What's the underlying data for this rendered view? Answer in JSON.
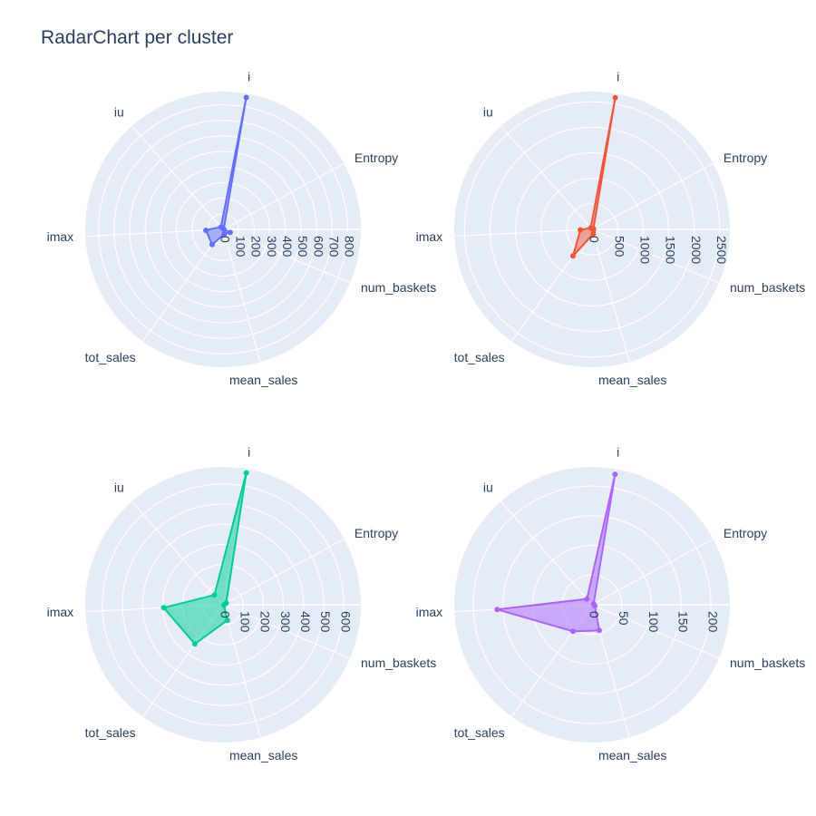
{
  "title": "RadarChart per cluster",
  "chart_data": [
    {
      "type": "radar",
      "theta": [
        "i",
        "Entropy",
        "num_baskets",
        "mean_sales",
        "tot_sales",
        "imax",
        "iu"
      ],
      "radial_range": [
        0,
        885
      ],
      "radial_ticks": [
        0,
        100,
        200,
        300,
        400,
        500,
        600,
        700,
        800
      ],
      "values": [
        860,
        5,
        50,
        30,
        120,
        110,
        20
      ],
      "color": "#636efa"
    },
    {
      "type": "radar",
      "theta": [
        "i",
        "Entropy",
        "num_baskets",
        "mean_sales",
        "tot_sales",
        "imax",
        "iu"
      ],
      "radial_range": [
        0,
        2700
      ],
      "radial_ticks": [
        0,
        500,
        1000,
        1500,
        2000,
        2500
      ],
      "values": [
        2620,
        30,
        30,
        90,
        640,
        230,
        40
      ],
      "color": "#ef553b"
    },
    {
      "type": "radar",
      "theta": [
        "i",
        "Entropy",
        "num_baskets",
        "mean_sales",
        "tot_sales",
        "imax",
        "iu"
      ],
      "radial_range": [
        0,
        685
      ],
      "radial_ticks": [
        0,
        100,
        200,
        300,
        400,
        500,
        600
      ],
      "values": [
        665,
        18,
        5,
        80,
        240,
        295,
        65
      ],
      "color": "#00cc96"
    },
    {
      "type": "radar",
      "theta": [
        "i",
        "Entropy",
        "num_baskets",
        "mean_sales",
        "tot_sales",
        "imax",
        "iu"
      ],
      "radial_range": [
        0,
        232
      ],
      "radial_ticks": [
        0,
        50,
        100,
        150,
        200
      ],
      "values": [
        223,
        3,
        5,
        45,
        55,
        160,
        13
      ],
      "color": "#ab63fa"
    }
  ]
}
